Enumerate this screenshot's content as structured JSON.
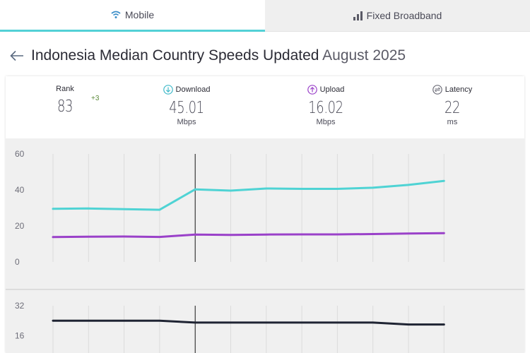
{
  "tabs": [
    {
      "label": "Mobile",
      "icon": "wifi-icon",
      "active": true
    },
    {
      "label": "Fixed Broadband",
      "icon": "signal-bars-icon",
      "active": false
    }
  ],
  "header": {
    "title": "Indonesia Median Country Speeds Updated",
    "date": "August 2025"
  },
  "stats": {
    "rank": {
      "label": "Rank",
      "value": "83",
      "delta": "+3"
    },
    "download": {
      "label": "Download",
      "value": "45.01",
      "unit": "Mbps"
    },
    "upload": {
      "label": "Upload",
      "value": "16.02",
      "unit": "Mbps"
    },
    "latency": {
      "label": "Latency",
      "value": "22",
      "unit": "ms"
    }
  },
  "colors": {
    "download": "#4fd3d4",
    "upload": "#9a41c9",
    "latency": "#1f2433",
    "accent": "#53d1d6"
  },
  "chart_data": [
    {
      "type": "line",
      "yticks": [
        "60",
        "40",
        "20",
        "0"
      ],
      "ylim": [
        0,
        60
      ],
      "series": [
        {
          "color": "#4fd3d4",
          "values": [
            29.5,
            29.7,
            29.3,
            29.0,
            40.3,
            39.6,
            40.8,
            40.6,
            40.6,
            41.2,
            42.8,
            45.0
          ]
        },
        {
          "color": "#9a41c9",
          "values": [
            13.8,
            14.0,
            14.1,
            13.9,
            15.2,
            15.0,
            15.2,
            15.3,
            15.3,
            15.5,
            15.8,
            16.0
          ]
        }
      ],
      "marker_index": 4
    },
    {
      "type": "line",
      "yticks": [
        "32",
        "16"
      ],
      "ylim": [
        0,
        32
      ],
      "series": [
        {
          "color": "#1f2433",
          "values": [
            24,
            24,
            24,
            24,
            23,
            23,
            23,
            23,
            23,
            23,
            22,
            22
          ]
        }
      ],
      "marker_index": 4
    }
  ]
}
